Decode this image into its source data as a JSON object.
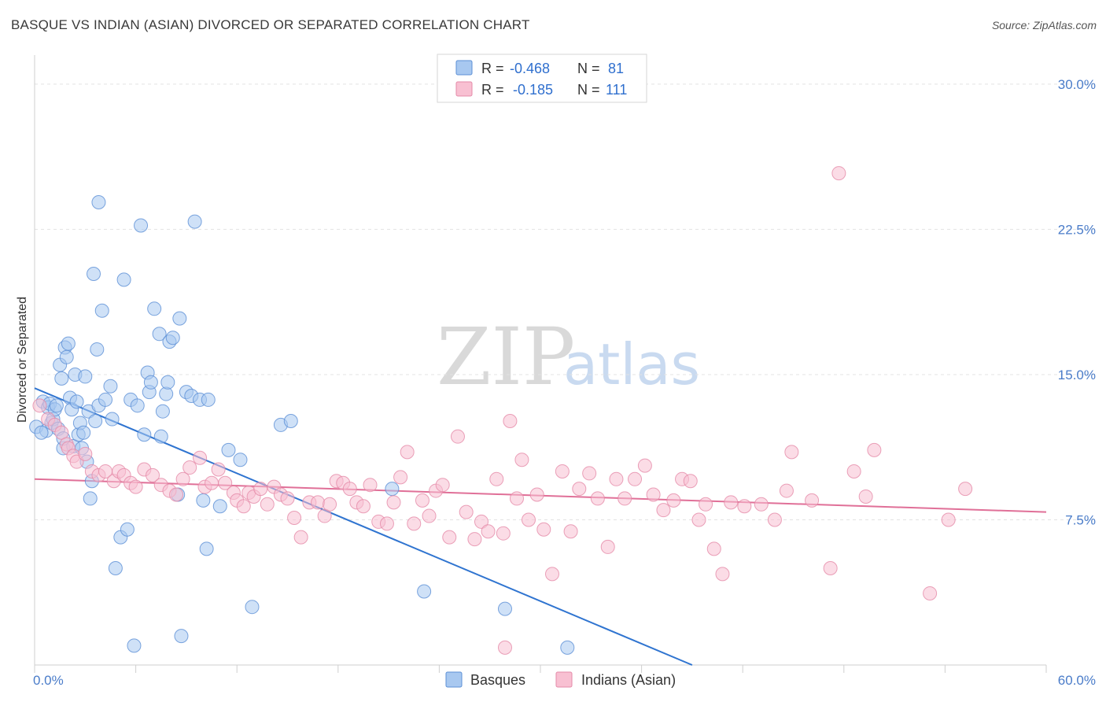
{
  "title": "BASQUE VS INDIAN (ASIAN) DIVORCED OR SEPARATED CORRELATION CHART",
  "source": "Source: ZipAtlas.com",
  "watermark": {
    "zip": "ZIP",
    "atlas": "atlas"
  },
  "legend": {
    "r_label": "R =",
    "n_label": "N =",
    "rows": [
      {
        "r": "-0.468",
        "n": "81",
        "color": "#a8c8f0",
        "border": "#5b8fd6"
      },
      {
        "r": "-0.185",
        "n": "111",
        "color": "#f8c0d2",
        "border": "#e58aa8"
      }
    ]
  },
  "bottom_legend": [
    {
      "label": "Basques",
      "color": "#a8c8f0",
      "border": "#5b8fd6"
    },
    {
      "label": "Indians (Asian)",
      "color": "#f8c0d2",
      "border": "#e58aa8"
    }
  ],
  "chart_data": {
    "type": "scatter",
    "ylabel": "Divorced or Separated",
    "xlabel": "",
    "xlim": [
      0,
      60
    ],
    "ylim": [
      0,
      31.5
    ],
    "y_ticks": [
      {
        "value": 7.5,
        "label": "7.5%"
      },
      {
        "value": 15,
        "label": "15.0%"
      },
      {
        "value": 22.5,
        "label": "22.5%"
      },
      {
        "value": 30,
        "label": "30.0%"
      }
    ],
    "x_tick_labels": [
      {
        "value": 0,
        "label": "0.0%"
      },
      {
        "value": 60,
        "label": "60.0%"
      }
    ],
    "x_minor_ticks": [
      0,
      6,
      12,
      18,
      24,
      30,
      36,
      42,
      48,
      54,
      60
    ],
    "grid": true,
    "series": [
      {
        "name": "Basques",
        "color": "#a8c8f0",
        "border": "#5b8fd6",
        "line_color": "#2f74d0",
        "trend": {
          "x": [
            0,
            39
          ],
          "y": [
            14.3,
            0
          ]
        },
        "points": [
          [
            0.1,
            12.3
          ],
          [
            0.5,
            13.6
          ],
          [
            0.7,
            12.1
          ],
          [
            0.8,
            13.3
          ],
          [
            0.9,
            13.5
          ],
          [
            1.0,
            12.5
          ],
          [
            1.1,
            12.7
          ],
          [
            1.2,
            13.2
          ],
          [
            1.3,
            13.4
          ],
          [
            1.4,
            12.2
          ],
          [
            1.5,
            15.5
          ],
          [
            1.6,
            14.8
          ],
          [
            1.7,
            11.2
          ],
          [
            1.8,
            16.4
          ],
          [
            1.9,
            15.9
          ],
          [
            2.0,
            16.6
          ],
          [
            2.1,
            13.8
          ],
          [
            2.2,
            13.2
          ],
          [
            2.3,
            11.3
          ],
          [
            2.4,
            15.0
          ],
          [
            2.5,
            13.6
          ],
          [
            2.6,
            11.9
          ],
          [
            2.7,
            12.5
          ],
          [
            2.8,
            11.2
          ],
          [
            2.9,
            12.0
          ],
          [
            3.0,
            14.9
          ],
          [
            3.1,
            10.5
          ],
          [
            3.2,
            13.1
          ],
          [
            3.3,
            8.6
          ],
          [
            3.4,
            9.5
          ],
          [
            3.5,
            20.2
          ],
          [
            3.6,
            12.6
          ],
          [
            3.7,
            16.3
          ],
          [
            3.8,
            13.4
          ],
          [
            4.0,
            18.3
          ],
          [
            4.2,
            13.7
          ],
          [
            4.5,
            14.4
          ],
          [
            4.6,
            12.7
          ],
          [
            4.8,
            5.0
          ],
          [
            5.1,
            6.6
          ],
          [
            5.3,
            19.9
          ],
          [
            5.5,
            7.0
          ],
          [
            5.7,
            13.7
          ],
          [
            5.9,
            1.0
          ],
          [
            6.1,
            13.4
          ],
          [
            6.5,
            11.9
          ],
          [
            6.7,
            15.1
          ],
          [
            6.8,
            14.1
          ],
          [
            6.9,
            14.6
          ],
          [
            7.1,
            18.4
          ],
          [
            7.4,
            17.1
          ],
          [
            7.5,
            11.8
          ],
          [
            7.6,
            13.1
          ],
          [
            7.8,
            14.0
          ],
          [
            7.9,
            14.6
          ],
          [
            8.0,
            16.7
          ],
          [
            8.2,
            16.9
          ],
          [
            8.5,
            8.8
          ],
          [
            8.6,
            17.9
          ],
          [
            8.7,
            1.5
          ],
          [
            9.0,
            14.1
          ],
          [
            9.3,
            13.9
          ],
          [
            9.5,
            22.9
          ],
          [
            3.8,
            23.9
          ],
          [
            6.3,
            22.7
          ],
          [
            9.8,
            13.7
          ],
          [
            10.0,
            8.5
          ],
          [
            10.2,
            6.0
          ],
          [
            10.3,
            13.7
          ],
          [
            11.0,
            8.2
          ],
          [
            11.5,
            11.1
          ],
          [
            12.2,
            10.6
          ],
          [
            12.9,
            3.0
          ],
          [
            14.6,
            12.4
          ],
          [
            15.2,
            12.6
          ],
          [
            21.2,
            9.1
          ],
          [
            23.1,
            3.8
          ],
          [
            27.9,
            2.9
          ],
          [
            31.6,
            0.9
          ],
          [
            1.7,
            11.7
          ],
          [
            0.4,
            12.0
          ]
        ]
      },
      {
        "name": "Indians (Asian)",
        "color": "#f8c0d2",
        "border": "#e58aa8",
        "line_color": "#e07098",
        "trend": {
          "x": [
            0,
            60
          ],
          "y": [
            9.6,
            7.9
          ]
        },
        "points": [
          [
            0.3,
            13.4
          ],
          [
            0.8,
            12.7
          ],
          [
            1.2,
            12.4
          ],
          [
            1.6,
            12.0
          ],
          [
            1.9,
            11.4
          ],
          [
            2.0,
            11.2
          ],
          [
            2.3,
            10.8
          ],
          [
            2.5,
            10.5
          ],
          [
            3.0,
            10.9
          ],
          [
            3.4,
            10.0
          ],
          [
            3.8,
            9.8
          ],
          [
            4.2,
            10.0
          ],
          [
            4.7,
            9.5
          ],
          [
            5.0,
            10.0
          ],
          [
            5.3,
            9.8
          ],
          [
            5.7,
            9.4
          ],
          [
            6.0,
            9.2
          ],
          [
            6.5,
            10.1
          ],
          [
            7.0,
            9.8
          ],
          [
            7.5,
            9.3
          ],
          [
            8.0,
            9.0
          ],
          [
            8.4,
            8.8
          ],
          [
            8.8,
            9.6
          ],
          [
            9.2,
            10.2
          ],
          [
            9.8,
            10.7
          ],
          [
            10.1,
            9.2
          ],
          [
            10.5,
            9.4
          ],
          [
            10.9,
            10.1
          ],
          [
            11.3,
            9.4
          ],
          [
            11.8,
            8.9
          ],
          [
            12.0,
            8.5
          ],
          [
            12.4,
            8.2
          ],
          [
            12.7,
            8.9
          ],
          [
            13.0,
            8.7
          ],
          [
            13.4,
            9.1
          ],
          [
            13.8,
            8.3
          ],
          [
            14.2,
            9.2
          ],
          [
            14.6,
            8.8
          ],
          [
            15.0,
            8.6
          ],
          [
            15.4,
            7.6
          ],
          [
            15.8,
            6.6
          ],
          [
            16.3,
            8.4
          ],
          [
            16.8,
            8.4
          ],
          [
            17.2,
            7.7
          ],
          [
            17.5,
            8.3
          ],
          [
            17.9,
            9.5
          ],
          [
            18.3,
            9.4
          ],
          [
            18.7,
            9.1
          ],
          [
            19.1,
            8.4
          ],
          [
            19.5,
            8.2
          ],
          [
            19.9,
            9.3
          ],
          [
            20.4,
            7.4
          ],
          [
            20.9,
            7.3
          ],
          [
            21.3,
            8.4
          ],
          [
            21.7,
            9.7
          ],
          [
            22.1,
            11.0
          ],
          [
            22.5,
            7.3
          ],
          [
            23.0,
            8.5
          ],
          [
            23.4,
            7.7
          ],
          [
            23.8,
            9.0
          ],
          [
            24.2,
            9.3
          ],
          [
            24.6,
            6.6
          ],
          [
            25.1,
            11.8
          ],
          [
            25.6,
            7.9
          ],
          [
            26.1,
            6.5
          ],
          [
            26.5,
            7.4
          ],
          [
            26.9,
            6.9
          ],
          [
            27.4,
            9.6
          ],
          [
            27.8,
            6.8
          ],
          [
            28.2,
            12.6
          ],
          [
            28.6,
            8.6
          ],
          [
            28.9,
            10.6
          ],
          [
            29.3,
            7.5
          ],
          [
            29.8,
            8.8
          ],
          [
            30.2,
            7.0
          ],
          [
            30.7,
            4.7
          ],
          [
            31.3,
            10.0
          ],
          [
            31.8,
            6.9
          ],
          [
            32.3,
            9.1
          ],
          [
            32.9,
            9.9
          ],
          [
            33.4,
            8.6
          ],
          [
            34.0,
            6.1
          ],
          [
            34.5,
            9.6
          ],
          [
            35.0,
            8.6
          ],
          [
            35.6,
            9.6
          ],
          [
            36.2,
            10.3
          ],
          [
            36.7,
            8.8
          ],
          [
            37.3,
            8.0
          ],
          [
            37.9,
            8.5
          ],
          [
            38.4,
            9.6
          ],
          [
            38.9,
            9.5
          ],
          [
            39.4,
            7.5
          ],
          [
            39.8,
            8.3
          ],
          [
            40.3,
            6.0
          ],
          [
            40.8,
            4.7
          ],
          [
            41.3,
            8.4
          ],
          [
            42.1,
            8.2
          ],
          [
            43.1,
            8.3
          ],
          [
            43.9,
            7.5
          ],
          [
            44.6,
            9.0
          ],
          [
            44.9,
            11.0
          ],
          [
            46.1,
            8.5
          ],
          [
            47.2,
            5.0
          ],
          [
            47.7,
            25.4
          ],
          [
            48.6,
            10.0
          ],
          [
            49.3,
            8.7
          ],
          [
            49.8,
            11.1
          ],
          [
            53.1,
            3.7
          ],
          [
            54.2,
            7.5
          ],
          [
            55.2,
            9.1
          ],
          [
            27.9,
            0.9
          ]
        ]
      }
    ]
  }
}
